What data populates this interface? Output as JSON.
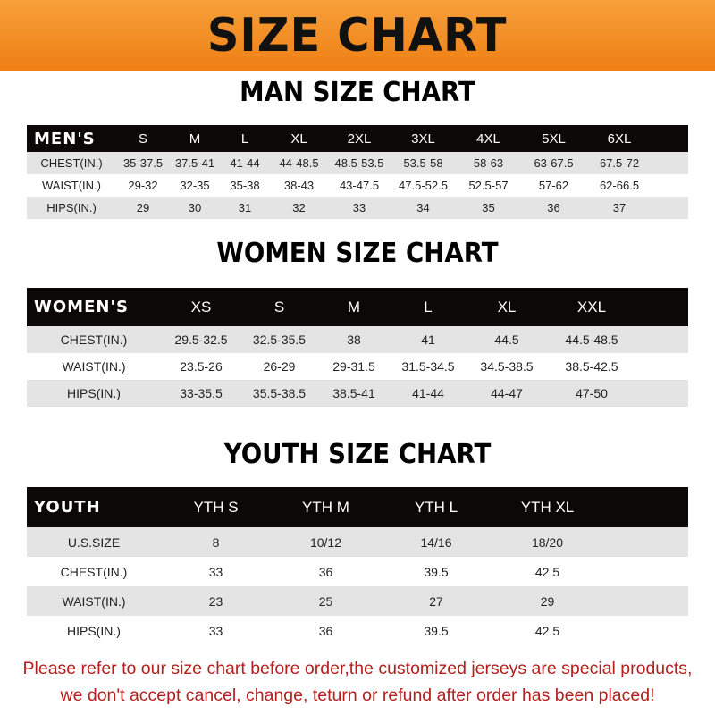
{
  "banner": {
    "title": "SIZE CHART",
    "color": "#ee7f14"
  },
  "men": {
    "title": "MAN SIZE CHART",
    "header": "MEN'S",
    "sizes": [
      "S",
      "M",
      "L",
      "XL",
      "2XL",
      "3XL",
      "4XL",
      "5XL",
      "6XL"
    ],
    "rows": [
      {
        "label": "CHEST(IN.)",
        "values": [
          "35-37.5",
          "37.5-41",
          "41-44",
          "44-48.5",
          "48.5-53.5",
          "53.5-58",
          "58-63",
          "63-67.5",
          "67.5-72"
        ]
      },
      {
        "label": "WAIST(IN.)",
        "values": [
          "29-32",
          "32-35",
          "35-38",
          "38-43",
          "43-47.5",
          "47.5-52.5",
          "52.5-57",
          "57-62",
          "62-66.5"
        ]
      },
      {
        "label": "HIPS(IN.)",
        "values": [
          "29",
          "30",
          "31",
          "32",
          "33",
          "34",
          "35",
          "36",
          "37"
        ]
      }
    ]
  },
  "women": {
    "title": "WOMEN SIZE CHART",
    "header": "WOMEN'S",
    "sizes": [
      "XS",
      "S",
      "M",
      "L",
      "XL",
      "XXL"
    ],
    "rows": [
      {
        "label": "CHEST(IN.)",
        "values": [
          "29.5-32.5",
          "32.5-35.5",
          "38",
          "41",
          "44.5",
          "44.5-48.5"
        ]
      },
      {
        "label": "WAIST(IN.)",
        "values": [
          "23.5-26",
          "26-29",
          "29-31.5",
          "31.5-34.5",
          "34.5-38.5",
          "38.5-42.5"
        ]
      },
      {
        "label": "HIPS(IN.)",
        "values": [
          "33-35.5",
          "35.5-38.5",
          "38.5-41",
          "41-44",
          "44-47",
          "47-50"
        ]
      }
    ]
  },
  "youth": {
    "title": "YOUTH SIZE CHART",
    "header": "YOUTH",
    "sizes": [
      "YTH S",
      "YTH M",
      "YTH L",
      "YTH XL"
    ],
    "rows": [
      {
        "label": "U.S.SIZE",
        "values": [
          "8",
          "10/12",
          "14/16",
          "18/20"
        ]
      },
      {
        "label": "CHEST(IN.)",
        "values": [
          "33",
          "36",
          "39.5",
          "42.5"
        ]
      },
      {
        "label": "WAIST(IN.)",
        "values": [
          "23",
          "25",
          "27",
          "29"
        ]
      },
      {
        "label": "HIPS(IN.)",
        "values": [
          "33",
          "36",
          "39.5",
          "42.5"
        ]
      }
    ]
  },
  "note": {
    "line1": "Please refer to our size chart before order,the customized jerseys are special products,",
    "line2": "we don't accept cancel, change, teturn or refund after order has been placed!",
    "color": "#b3201e"
  }
}
